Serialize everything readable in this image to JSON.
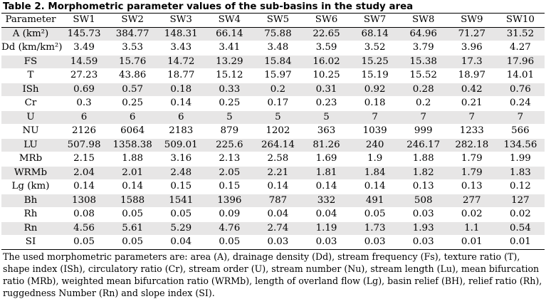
{
  "caption": "Table 2. Morphometric parameter values of the sub-basins in the study area",
  "header": [
    "Parameter",
    "SW1",
    "SW2",
    "SW3",
    "SW4",
    "SW5",
    "SW6",
    "SW7",
    "SW8",
    "SW9",
    "SW10"
  ],
  "rows": [
    [
      "A (km²)",
      "145.73",
      "384.77",
      "148.31",
      "66.14",
      "75.88",
      "22.65",
      "68.14",
      "64.96",
      "71.27",
      "31.52"
    ],
    [
      "Dd (km/km²)",
      "3.49",
      "3.53",
      "3.43",
      "3.41",
      "3.48",
      "3.59",
      "3.52",
      "3.79",
      "3.96",
      "4.27"
    ],
    [
      "FS",
      "14.59",
      "15.76",
      "14.72",
      "13.29",
      "15.84",
      "16.02",
      "15.25",
      "15.38",
      "17.3",
      "17.96"
    ],
    [
      "T",
      "27.23",
      "43.86",
      "18.77",
      "15.12",
      "15.97",
      "10.25",
      "15.19",
      "15.52",
      "18.97",
      "14.01"
    ],
    [
      "ISh",
      "0.69",
      "0.57",
      "0.18",
      "0.33",
      "0.2",
      "0.31",
      "0.92",
      "0.28",
      "0.42",
      "0.76"
    ],
    [
      "Cr",
      "0.3",
      "0.25",
      "0.14",
      "0.25",
      "0.17",
      "0.23",
      "0.18",
      "0.2",
      "0.21",
      "0.24"
    ],
    [
      "U",
      "6",
      "6",
      "6",
      "5",
      "5",
      "5",
      "7",
      "7",
      "7",
      "7"
    ],
    [
      "NU",
      "2126",
      "6064",
      "2183",
      "879",
      "1202",
      "363",
      "1039",
      "999",
      "1233",
      "566"
    ],
    [
      "LU",
      "507.98",
      "1358.38",
      "509.01",
      "225.6",
      "264.14",
      "81.26",
      "240",
      "246.17",
      "282.18",
      "134.56"
    ],
    [
      "MRb",
      "2.15",
      "1.88",
      "3.16",
      "2.13",
      "2.58",
      "1.69",
      "1.9",
      "1.88",
      "1.79",
      "1.99"
    ],
    [
      "WRMb",
      "2.04",
      "2.01",
      "2.48",
      "2.05",
      "2.21",
      "1.81",
      "1.84",
      "1.82",
      "1.79",
      "1.83"
    ],
    [
      "Lg (km)",
      "0.14",
      "0.14",
      "0.15",
      "0.15",
      "0.14",
      "0.14",
      "0.14",
      "0.13",
      "0.13",
      "0.12"
    ],
    [
      "Bh",
      "1308",
      "1588",
      "1541",
      "1396",
      "787",
      "332",
      "491",
      "508",
      "277",
      "127"
    ],
    [
      "Rh",
      "0.08",
      "0.05",
      "0.05",
      "0.09",
      "0.04",
      "0.04",
      "0.05",
      "0.03",
      "0.02",
      "0.02"
    ],
    [
      "Rn",
      "4.56",
      "5.61",
      "5.29",
      "4.76",
      "2.74",
      "1.19",
      "1.73",
      "1.93",
      "1.1",
      "0.54"
    ],
    [
      "SI",
      "0.05",
      "0.05",
      "0.04",
      "0.05",
      "0.03",
      "0.03",
      "0.03",
      "0.03",
      "0.01",
      "0.01"
    ]
  ],
  "note": "The used morphometric parameters are: area (A), drainage density (Dd), stream frequency (Fs), texture ratio (T), shape index (ISh), circulatory ratio (Cr), stream order (U), stream number (Nu), stream length (Lu), mean bifurcation ratio (MRb), weighted mean bifurcation ratio (WRMb), length of overland flow (Lg), basin relief (BH), relief ratio (Rh), ruggedness Number (Rn) and slope index (SI)."
}
